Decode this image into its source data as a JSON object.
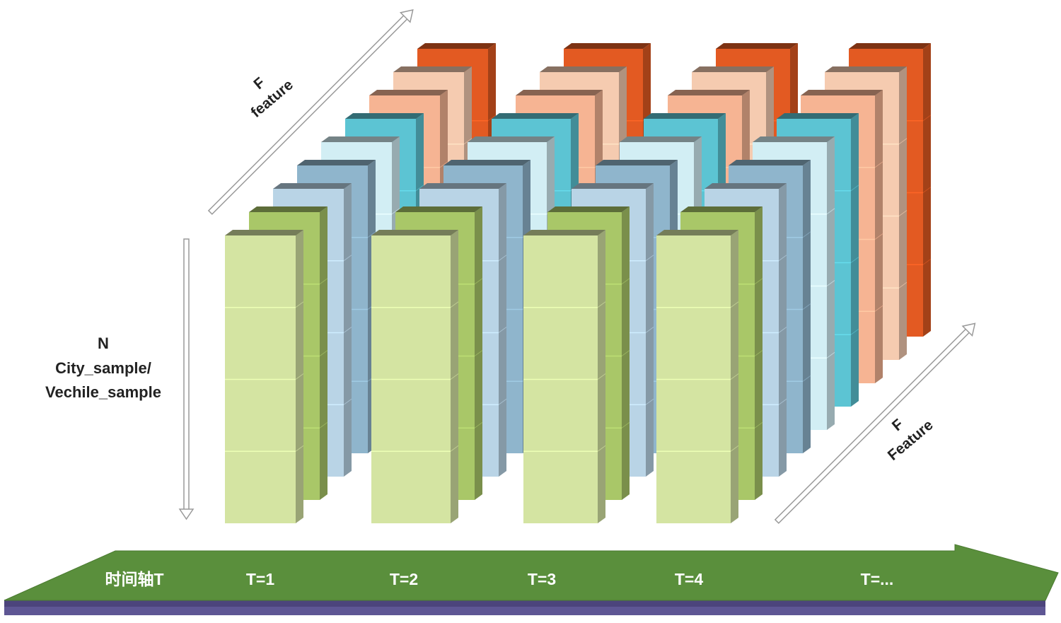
{
  "labels": {
    "n_axis_line1": "N",
    "n_axis_line2": "City_sample/",
    "n_axis_line3": "Vechile_sample",
    "f_top_line1": "F",
    "f_top_line2": "feature",
    "f_right_line1": "F",
    "f_right_line2": "Feature"
  },
  "timeline": {
    "title": "时间轴T",
    "steps": [
      "T=1",
      "T=2",
      "T=3",
      "T=4",
      "T=..."
    ]
  },
  "palette": {
    "layers_back_to_front": [
      "#e35a22",
      "#f5cbb0",
      "#f6b493",
      "#5cc4d3",
      "#d2eef4",
      "#8fb5cc",
      "#b9d4e6",
      "#a9c768",
      "#d4e4a2"
    ],
    "timeline_top": "#5a8f3c",
    "timeline_base": "#5e5694"
  }
}
